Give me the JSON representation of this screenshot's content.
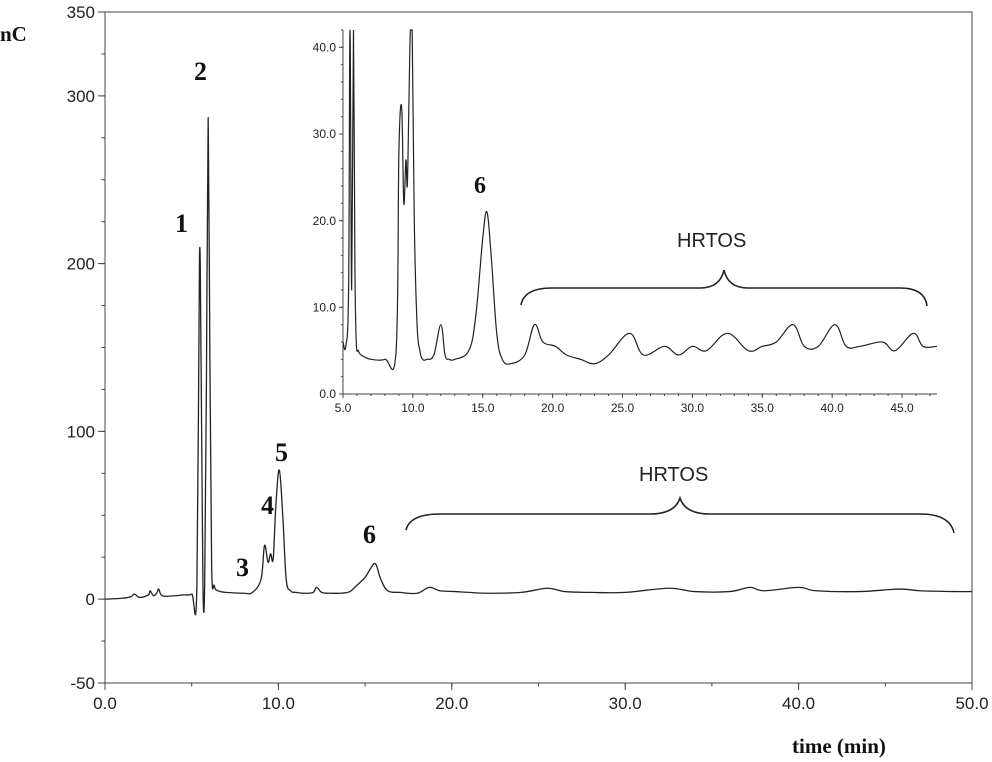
{
  "chart_data": [
    {
      "type": "line",
      "ylabel": "nC",
      "xlabel": "time (min)",
      "xlim": [
        0,
        50
      ],
      "ylim": [
        -50,
        350
      ],
      "x_ticks": [
        "0.0",
        "10.0",
        "20.0",
        "30.0",
        "40.0",
        "50.0"
      ],
      "y_ticks": [
        "-50",
        "0",
        "100",
        "200",
        "300",
        "350"
      ],
      "grid": false,
      "series": [
        {
          "x": [
            0,
            1,
            1.5,
            1.7,
            2,
            2.5,
            2.6,
            2.8,
            3,
            3.1,
            3.3,
            4,
            4.5,
            5,
            5.3,
            5.45,
            5.55,
            5.65,
            5.75,
            5.85,
            5.95,
            6.05,
            6.15,
            6.3,
            6.5,
            7,
            8,
            8.5,
            9,
            9.2,
            9.4,
            9.55,
            9.7,
            9.85,
            10.05,
            10.25,
            10.45,
            10.7,
            11,
            11.5,
            12,
            12.2,
            12.5,
            13,
            14,
            14.5,
            15,
            15.3,
            15.6,
            15.9,
            16.3,
            17,
            18,
            18.7,
            19.3,
            20.2,
            21,
            22,
            24,
            25.5,
            26.5,
            28,
            30,
            32.5,
            34,
            36,
            37.2,
            38,
            40,
            41,
            43.5,
            45.8,
            47,
            49,
            50
          ],
          "y": [
            0,
            0.5,
            1.5,
            3,
            1,
            2.5,
            5,
            2,
            4,
            6,
            2,
            2,
            2.5,
            3,
            8,
            205,
            130,
            7,
            10,
            130,
            287,
            140,
            20,
            8,
            5,
            4,
            3.5,
            4,
            12,
            32,
            22,
            27,
            24,
            55,
            77,
            50,
            12,
            5,
            4,
            3.5,
            4,
            7,
            4,
            3.5,
            4,
            8,
            13,
            18,
            21,
            12,
            5,
            4,
            3.5,
            7,
            5,
            4.5,
            4,
            3.5,
            4,
            6.5,
            4.5,
            4,
            4,
            6.5,
            4.5,
            4.5,
            7,
            5,
            7,
            5,
            4.5,
            6,
            5,
            4.5,
            4.5
          ]
        }
      ],
      "annotations": [
        "1",
        "2",
        "3",
        "4",
        "5",
        "6",
        "HRTOS"
      ]
    },
    {
      "type": "line",
      "xlim": [
        5,
        47.5
      ],
      "ylim": [
        0,
        42
      ],
      "x_ticks": [
        "5.0",
        "10.0",
        "15.0",
        "20.0",
        "25.0",
        "30.0",
        "35.0",
        "40.0",
        "45.0"
      ],
      "y_ticks": [
        "0.0",
        "10.0",
        "20.0",
        "30.0",
        "40.0"
      ],
      "grid": false,
      "series": [
        {
          "x": [
            5.0,
            5.2,
            5.4,
            5.5,
            5.62,
            5.75,
            5.85,
            5.95,
            6.1,
            6.3,
            7,
            8,
            8.8,
            9.0,
            9.2,
            9.35,
            9.5,
            9.6,
            9.7,
            9.82,
            9.95,
            10.1,
            10.3,
            10.5,
            10.7,
            11,
            11.5,
            12.0,
            12.3,
            12.6,
            13,
            14,
            14.5,
            15.0,
            15.3,
            15.6,
            16.0,
            16.4,
            17,
            18,
            18.7,
            19.3,
            20.2,
            21,
            22,
            23,
            24,
            25.5,
            26.5,
            28,
            29,
            30,
            31,
            32.5,
            34,
            35,
            36,
            37.2,
            38,
            39,
            40.2,
            41,
            42,
            43.6,
            44.5,
            45.8,
            46.5,
            47.5
          ],
          "y": [
            6,
            5.5,
            12,
            45,
            12,
            45,
            15,
            6,
            5,
            4.5,
            4,
            4,
            5,
            28,
            33,
            22,
            27,
            24,
            32,
            45,
            45,
            20,
            8,
            5,
            4,
            4,
            4.5,
            8,
            4.5,
            4,
            4,
            5,
            9,
            18,
            21,
            16,
            7,
            4,
            3.5,
            4.5,
            8,
            6,
            5.5,
            4.5,
            4,
            3.5,
            4.5,
            7,
            4.5,
            5.5,
            4.5,
            5.5,
            5,
            7,
            5,
            5.5,
            6,
            8,
            5.5,
            5.5,
            8,
            5.5,
            5.5,
            6,
            5,
            7,
            5.5,
            5.5
          ]
        }
      ],
      "annotations": [
        "6",
        "HRTOS"
      ]
    }
  ]
}
